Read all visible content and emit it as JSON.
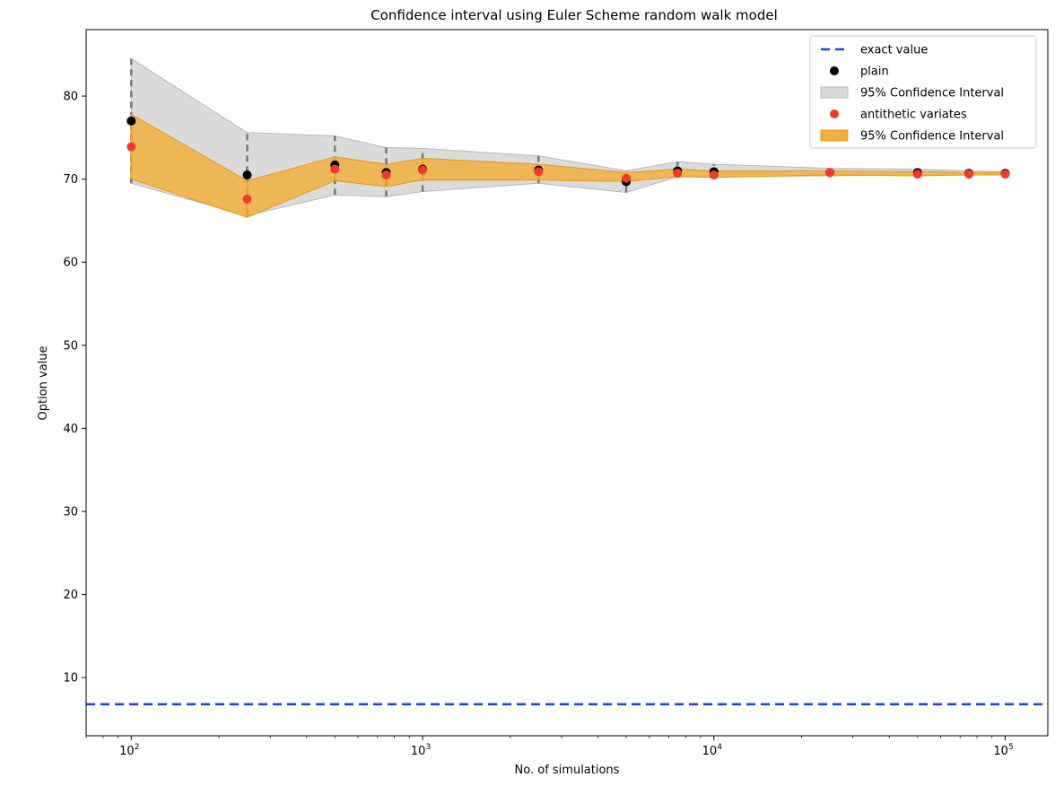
{
  "chart_data": {
    "type": "scatter",
    "title": "Confidence interval using Euler Scheme random walk model",
    "xlabel": "No. of simulations",
    "ylabel": "Option value",
    "xscale": "log",
    "xlim": [
      70,
      140000
    ],
    "ylim": [
      3,
      88
    ],
    "x_ticks": [
      {
        "value": 100,
        "base": "10",
        "exp": "2"
      },
      {
        "value": 1000,
        "base": "10",
        "exp": "3"
      },
      {
        "value": 10000,
        "base": "10",
        "exp": "4"
      },
      {
        "value": 100000,
        "base": "10",
        "exp": "5"
      }
    ],
    "y_ticks": [
      10,
      20,
      30,
      40,
      50,
      60,
      70,
      80
    ],
    "grid": false,
    "legend_position": "top-right",
    "x": [
      100,
      250,
      500,
      750,
      1000,
      2500,
      5000,
      7500,
      10000,
      25000,
      50000,
      75000,
      100000
    ],
    "series": [
      {
        "name": "exact value",
        "kind": "hline",
        "value": 6.8,
        "color": "#1f3fdc"
      },
      {
        "name": "plain",
        "kind": "scatter",
        "color": "#000000",
        "values": [
          77.0,
          70.5,
          71.7,
          70.8,
          71.2,
          71.1,
          69.7,
          71.0,
          70.9,
          70.8,
          70.8,
          70.7,
          70.7
        ]
      },
      {
        "name": "95% Confidence Interval",
        "kind": "band",
        "color": "#d9d9d9",
        "edge_color": "#b8b8b8",
        "lower": [
          69.5,
          65.6,
          68.1,
          67.9,
          68.5,
          69.5,
          68.4,
          70.3,
          70.3,
          70.4,
          70.5,
          70.5,
          70.5
        ],
        "upper": [
          84.5,
          75.6,
          75.2,
          73.8,
          73.7,
          72.8,
          71.0,
          72.1,
          71.8,
          71.3,
          71.2,
          71.0,
          70.9
        ]
      },
      {
        "name": "antithetic variates",
        "kind": "scatter",
        "color": "#ee3b2b",
        "values": [
          73.9,
          67.6,
          71.2,
          70.5,
          71.1,
          70.9,
          70.1,
          70.7,
          70.5,
          70.8,
          70.6,
          70.6,
          70.6
        ]
      },
      {
        "name": "95% Confidence Interval",
        "kind": "band",
        "color": "#f0b040",
        "edge_color": "#e39a1c",
        "lower": [
          70.0,
          65.4,
          69.8,
          69.1,
          69.9,
          69.9,
          69.7,
          70.3,
          70.2,
          70.5,
          70.4,
          70.5,
          70.5
        ],
        "upper": [
          77.8,
          69.8,
          72.7,
          71.8,
          72.5,
          71.8,
          70.8,
          71.2,
          71.0,
          71.0,
          70.9,
          70.8,
          70.8
        ]
      }
    ]
  }
}
